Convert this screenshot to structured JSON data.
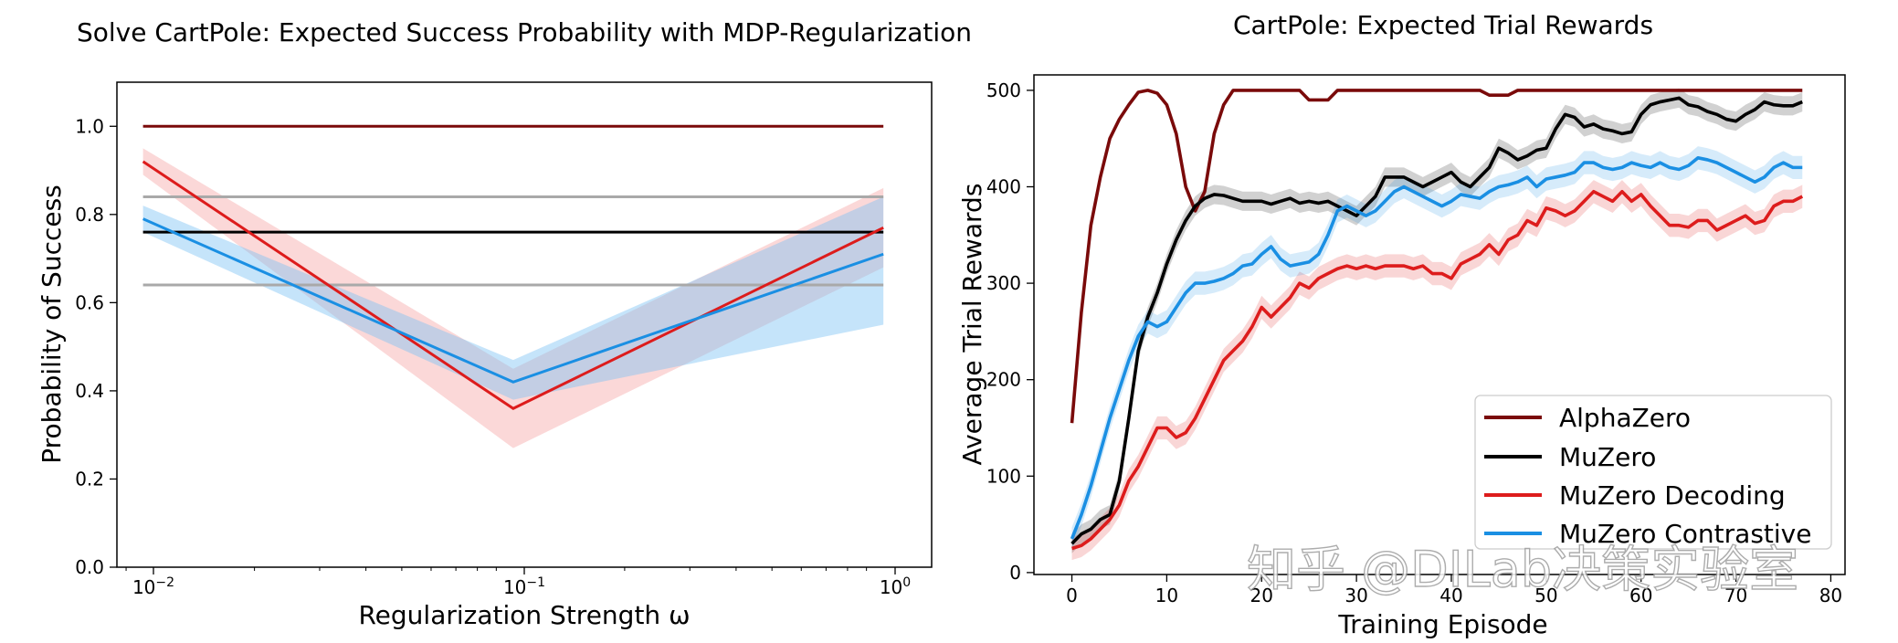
{
  "chart_data": [
    {
      "type": "line",
      "title": "Solve CartPole: Expected Success Probability with MDP-Regularization",
      "xlabel": "Regularization Strength ω",
      "ylabel": "Probability of Success",
      "xscale": "log",
      "xlim": [
        0.0085,
        1.35
      ],
      "ylim": [
        0.0,
        1.1
      ],
      "xticks": [
        {
          "value": 0.01,
          "base": "10",
          "exp": "−2"
        },
        {
          "value": 0.1,
          "base": "10",
          "exp": "−1"
        },
        {
          "value": 1.0,
          "base": "10",
          "exp": "0"
        }
      ],
      "yticks": [
        0.0,
        0.2,
        0.4,
        0.6,
        0.8,
        1.0
      ],
      "ytick_labels": [
        "0.0",
        "0.2",
        "0.4",
        "0.6",
        "0.8",
        "1.0"
      ],
      "grid": false,
      "legend": "none",
      "hlines": [
        {
          "y": 1.0,
          "color": "#7a0a0a"
        },
        {
          "y": 0.84,
          "color": "#a9a9a9"
        },
        {
          "y": 0.64,
          "color": "#a9a9a9"
        },
        {
          "y": 0.76,
          "color": "#000000"
        }
      ],
      "series": [
        {
          "color": "#dd1c1c",
          "band_color": "#f6a9a9",
          "x": [
            0.01,
            0.1,
            1.0
          ],
          "values": [
            0.92,
            0.36,
            0.77
          ],
          "lower": [
            0.89,
            0.27,
            0.68
          ],
          "upper": [
            0.95,
            0.45,
            0.86
          ]
        },
        {
          "color": "#1a8fe3",
          "band_color": "#7ec3f3",
          "x": [
            0.01,
            0.1,
            1.0
          ],
          "values": [
            0.79,
            0.42,
            0.71
          ],
          "lower": [
            0.76,
            0.38,
            0.55
          ],
          "upper": [
            0.82,
            0.47,
            0.84
          ]
        }
      ]
    },
    {
      "type": "line",
      "title": "CartPole: Expected Trial Rewards",
      "xlabel": "Training Episode",
      "ylabel": "Average Trial Rewards",
      "xlim": [
        -4,
        81.5
      ],
      "ylim": [
        -2,
        516
      ],
      "xticks": [
        0,
        10,
        20,
        30,
        40,
        50,
        60,
        70,
        80
      ],
      "yticks": [
        0,
        100,
        200,
        300,
        400,
        500
      ],
      "grid": false,
      "legend": "lower-right",
      "series": [
        {
          "name": "AlphaZero",
          "color": "#7a0a0a",
          "band": 0,
          "values": [
            155,
            270,
            360,
            410,
            450,
            470,
            485,
            498,
            500,
            497,
            485,
            455,
            400,
            375,
            395,
            455,
            485,
            500,
            500,
            500,
            500,
            500,
            500,
            500,
            500,
            490,
            490,
            490,
            500,
            500,
            500,
            500,
            500,
            500,
            500,
            500,
            500,
            500,
            500,
            500,
            500,
            500,
            500,
            500,
            495,
            495,
            495,
            500,
            500,
            500,
            500,
            500,
            500,
            500,
            500,
            500,
            500,
            500,
            500,
            500,
            500,
            500,
            500,
            500,
            500,
            500,
            500,
            500,
            500,
            500,
            500,
            500,
            500,
            500,
            500,
            500,
            500,
            500
          ]
        },
        {
          "name": "MuZero",
          "color": "#000000",
          "band": 10,
          "values": [
            30,
            40,
            45,
            55,
            60,
            95,
            160,
            230,
            265,
            290,
            320,
            345,
            365,
            380,
            388,
            392,
            391,
            388,
            385,
            385,
            385,
            382,
            385,
            388,
            383,
            385,
            383,
            385,
            380,
            375,
            370,
            380,
            390,
            410,
            410,
            410,
            405,
            400,
            405,
            410,
            415,
            405,
            400,
            410,
            420,
            440,
            435,
            428,
            432,
            438,
            440,
            460,
            475,
            472,
            462,
            465,
            460,
            458,
            455,
            457,
            475,
            485,
            488,
            490,
            492,
            485,
            483,
            478,
            475,
            470,
            468,
            475,
            480,
            488,
            485,
            484,
            484,
            488
          ]
        },
        {
          "name": "MuZero Decoding",
          "color": "#dd1c1c",
          "band": 12,
          "values": [
            25,
            28,
            35,
            45,
            55,
            70,
            95,
            110,
            130,
            150,
            150,
            140,
            145,
            160,
            180,
            200,
            220,
            230,
            240,
            255,
            275,
            265,
            275,
            285,
            300,
            295,
            305,
            310,
            315,
            318,
            315,
            318,
            315,
            318,
            318,
            318,
            315,
            318,
            310,
            310,
            305,
            320,
            325,
            330,
            340,
            330,
            345,
            350,
            365,
            360,
            378,
            375,
            370,
            375,
            385,
            395,
            390,
            385,
            395,
            385,
            392,
            380,
            370,
            360,
            360,
            358,
            365,
            365,
            355,
            360,
            365,
            370,
            362,
            365,
            380,
            385,
            385,
            390
          ]
        },
        {
          "name": "MuZero Contrastive",
          "color": "#1a8fe3",
          "band": 12,
          "values": [
            35,
            60,
            90,
            125,
            160,
            190,
            220,
            245,
            260,
            255,
            260,
            275,
            290,
            300,
            300,
            302,
            305,
            310,
            318,
            320,
            330,
            338,
            325,
            318,
            320,
            322,
            330,
            350,
            375,
            380,
            375,
            370,
            375,
            385,
            395,
            400,
            395,
            390,
            385,
            380,
            385,
            392,
            390,
            388,
            395,
            400,
            402,
            405,
            410,
            400,
            408,
            410,
            412,
            415,
            425,
            425,
            420,
            418,
            420,
            425,
            422,
            420,
            425,
            420,
            418,
            422,
            430,
            428,
            425,
            420,
            415,
            410,
            405,
            410,
            420,
            425,
            420,
            420
          ]
        }
      ]
    }
  ],
  "watermark": "知乎 @DILab决策实验室"
}
